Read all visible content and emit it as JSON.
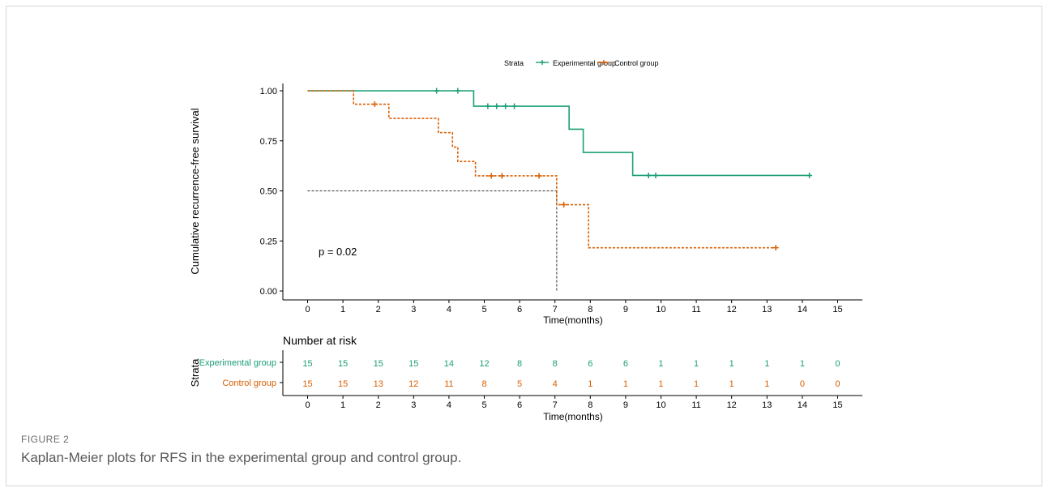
{
  "figure": {
    "label": "FIGURE 2",
    "caption": "Kaplan-Meier plots for RFS in the experimental group and control group."
  },
  "chart_data": {
    "type": "line",
    "subtype": "kaplan-meier-step",
    "legend": {
      "title": "Strata",
      "placement": "top-center",
      "entries": [
        "Experimental group",
        "Control group"
      ]
    },
    "xlabel": "Time(months)",
    "ylabel": "Cumulative recurrence-free survival",
    "xlim": [
      -0.7,
      15.7
    ],
    "ylim": [
      0,
      1
    ],
    "x_ticks": [
      "0",
      "1",
      "2",
      "3",
      "4",
      "5",
      "6",
      "7",
      "8",
      "9",
      "10",
      "11",
      "12",
      "13",
      "14",
      "15"
    ],
    "y_ticks": [
      "0.00",
      "0.25",
      "0.50",
      "0.75",
      "1.00"
    ],
    "grid": false,
    "annotation": "p = 0.02",
    "median_reference": {
      "y": 0.5,
      "x": 7.05
    },
    "series": [
      {
        "name": "Experimental group",
        "color": "#1b9e77",
        "dash": "solid",
        "steps": [
          [
            0,
            1.0
          ],
          [
            4.7,
            0.923
          ],
          [
            7.4,
            0.808
          ],
          [
            7.8,
            0.692
          ],
          [
            9.2,
            0.577
          ],
          [
            14.2,
            0.577
          ]
        ],
        "censor": [
          [
            3.65,
            1.0
          ],
          [
            4.25,
            1.0
          ],
          [
            5.1,
            0.923
          ],
          [
            5.35,
            0.923
          ],
          [
            5.6,
            0.923
          ],
          [
            5.85,
            0.923
          ],
          [
            9.65,
            0.577
          ],
          [
            9.85,
            0.577
          ],
          [
            14.2,
            0.577
          ]
        ]
      },
      {
        "name": "Control group",
        "color": "#d95f02",
        "dash": "dashed",
        "steps": [
          [
            0,
            1.0
          ],
          [
            1.3,
            0.933
          ],
          [
            2.3,
            0.862
          ],
          [
            3.7,
            0.791
          ],
          [
            4.1,
            0.719
          ],
          [
            4.25,
            0.647
          ],
          [
            4.75,
            0.575
          ],
          [
            7.05,
            0.431
          ],
          [
            7.95,
            0.216
          ],
          [
            13.25,
            0.216
          ]
        ],
        "censor": [
          [
            1.9,
            0.933
          ],
          [
            5.2,
            0.575
          ],
          [
            5.5,
            0.575
          ],
          [
            6.55,
            0.575
          ],
          [
            7.25,
            0.431
          ],
          [
            13.25,
            0.216
          ]
        ]
      }
    ],
    "risk_table": {
      "title": "Number at risk",
      "row_axis_label": "Strata",
      "xlabel": "Time(months)",
      "rows": [
        {
          "name": "Experimental group",
          "color": "#1b9e77",
          "values": [
            "15",
            "15",
            "15",
            "15",
            "14",
            "12",
            "8",
            "8",
            "6",
            "6",
            "1",
            "1",
            "1",
            "1",
            "1",
            "0"
          ]
        },
        {
          "name": "Control group",
          "color": "#d95f02",
          "values": [
            "15",
            "15",
            "13",
            "12",
            "11",
            "8",
            "5",
            "4",
            "1",
            "1",
            "1",
            "1",
            "1",
            "1",
            "0",
            "0"
          ]
        }
      ]
    }
  }
}
